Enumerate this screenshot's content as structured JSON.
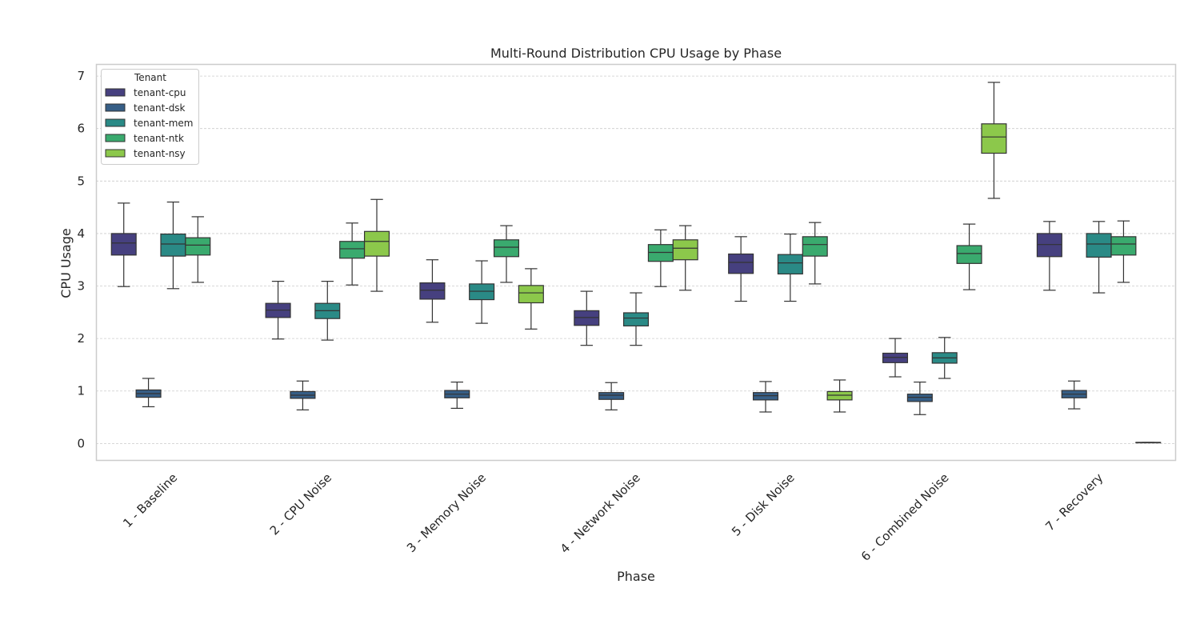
{
  "chart_data": {
    "type": "box",
    "title": "Multi-Round Distribution CPU Usage by Phase",
    "xlabel": "Phase",
    "ylabel": "CPU Usage",
    "ylim": [
      -0.33,
      7.23
    ],
    "yticks": [
      0,
      1,
      2,
      3,
      4,
      5,
      6,
      7
    ],
    "grid": "horizontal",
    "legend": {
      "title": "Tenant",
      "placement": "top-left"
    },
    "categories": [
      "1 - Baseline",
      "2 - CPU Noise",
      "3 - Memory Noise",
      "4 - Network Noise",
      "5 - Disk Noise",
      "6 - Combined Noise",
      "7 - Recovery"
    ],
    "series": [
      {
        "name": "tenant-cpu",
        "color": "#46407f",
        "boxes": [
          {
            "min": 2.99,
            "q1": 3.59,
            "median": 3.82,
            "q3": 4.0,
            "max": 4.58
          },
          {
            "min": 1.99,
            "q1": 2.4,
            "median": 2.54,
            "q3": 2.67,
            "max": 3.09
          },
          {
            "min": 2.31,
            "q1": 2.75,
            "median": 2.92,
            "q3": 3.06,
            "max": 3.5
          },
          {
            "min": 1.87,
            "q1": 2.25,
            "median": 2.4,
            "q3": 2.53,
            "max": 2.9
          },
          {
            "min": 2.71,
            "q1": 3.24,
            "median": 3.45,
            "q3": 3.61,
            "max": 3.94
          },
          {
            "min": 1.27,
            "q1": 1.54,
            "median": 1.64,
            "q3": 1.72,
            "max": 2.0
          },
          {
            "min": 2.92,
            "q1": 3.56,
            "median": 3.79,
            "q3": 4.0,
            "max": 4.23
          }
        ]
      },
      {
        "name": "tenant-dsk",
        "color": "#365e86",
        "boxes": [
          {
            "min": 0.7,
            "q1": 0.88,
            "median": 0.95,
            "q3": 1.02,
            "max": 1.24
          },
          {
            "min": 0.64,
            "q1": 0.86,
            "median": 0.92,
            "q3": 0.99,
            "max": 1.19
          },
          {
            "min": 0.67,
            "q1": 0.87,
            "median": 0.94,
            "q3": 1.01,
            "max": 1.17
          },
          {
            "min": 0.64,
            "q1": 0.84,
            "median": 0.92,
            "q3": 0.97,
            "max": 1.16
          },
          {
            "min": 0.6,
            "q1": 0.83,
            "median": 0.91,
            "q3": 0.97,
            "max": 1.18
          },
          {
            "min": 0.55,
            "q1": 0.8,
            "median": 0.88,
            "q3": 0.94,
            "max": 1.17
          },
          {
            "min": 0.66,
            "q1": 0.87,
            "median": 0.94,
            "q3": 1.01,
            "max": 1.19
          }
        ]
      },
      {
        "name": "tenant-mem",
        "color": "#2a8a86",
        "boxes": [
          {
            "min": 2.95,
            "q1": 3.57,
            "median": 3.8,
            "q3": 3.99,
            "max": 4.6
          },
          {
            "min": 1.97,
            "q1": 2.38,
            "median": 2.53,
            "q3": 2.67,
            "max": 3.09
          },
          {
            "min": 2.29,
            "q1": 2.74,
            "median": 2.9,
            "q3": 3.04,
            "max": 3.48
          },
          {
            "min": 1.87,
            "q1": 2.24,
            "median": 2.39,
            "q3": 2.49,
            "max": 2.87
          },
          {
            "min": 2.71,
            "q1": 3.23,
            "median": 3.44,
            "q3": 3.6,
            "max": 3.99
          },
          {
            "min": 1.24,
            "q1": 1.53,
            "median": 1.63,
            "q3": 1.73,
            "max": 2.02
          },
          {
            "min": 2.87,
            "q1": 3.55,
            "median": 3.8,
            "q3": 4.0,
            "max": 4.23
          }
        ]
      },
      {
        "name": "tenant-ntk",
        "color": "#3aaa6e",
        "boxes": [
          {
            "min": 3.07,
            "q1": 3.59,
            "median": 3.78,
            "q3": 3.92,
            "max": 4.32
          },
          {
            "min": 3.02,
            "q1": 3.53,
            "median": 3.71,
            "q3": 3.85,
            "max": 4.2
          },
          {
            "min": 3.07,
            "q1": 3.56,
            "median": 3.74,
            "q3": 3.88,
            "max": 4.15
          },
          {
            "min": 2.99,
            "q1": 3.47,
            "median": 3.64,
            "q3": 3.79,
            "max": 4.07
          },
          {
            "min": 3.04,
            "q1": 3.57,
            "median": 3.79,
            "q3": 3.94,
            "max": 4.21
          },
          {
            "min": 2.93,
            "q1": 3.43,
            "median": 3.62,
            "q3": 3.77,
            "max": 4.18
          },
          {
            "min": 3.07,
            "q1": 3.59,
            "median": 3.8,
            "q3": 3.94,
            "max": 4.24
          }
        ]
      },
      {
        "name": "tenant-nsy",
        "color": "#8cc84b",
        "boxes": [
          null,
          {
            "min": 2.9,
            "q1": 3.57,
            "median": 3.85,
            "q3": 4.04,
            "max": 4.65
          },
          {
            "min": 2.18,
            "q1": 2.68,
            "median": 2.87,
            "q3": 3.01,
            "max": 3.33
          },
          {
            "min": 2.92,
            "q1": 3.5,
            "median": 3.72,
            "q3": 3.88,
            "max": 4.15
          },
          {
            "min": 0.6,
            "q1": 0.83,
            "median": 0.92,
            "q3": 0.99,
            "max": 1.21
          },
          {
            "min": 4.67,
            "q1": 5.53,
            "median": 5.84,
            "q3": 6.09,
            "max": 6.88
          },
          {
            "min": 0.02,
            "q1": 0.02,
            "median": 0.02,
            "q3": 0.02,
            "max": 0.02
          }
        ]
      }
    ]
  }
}
